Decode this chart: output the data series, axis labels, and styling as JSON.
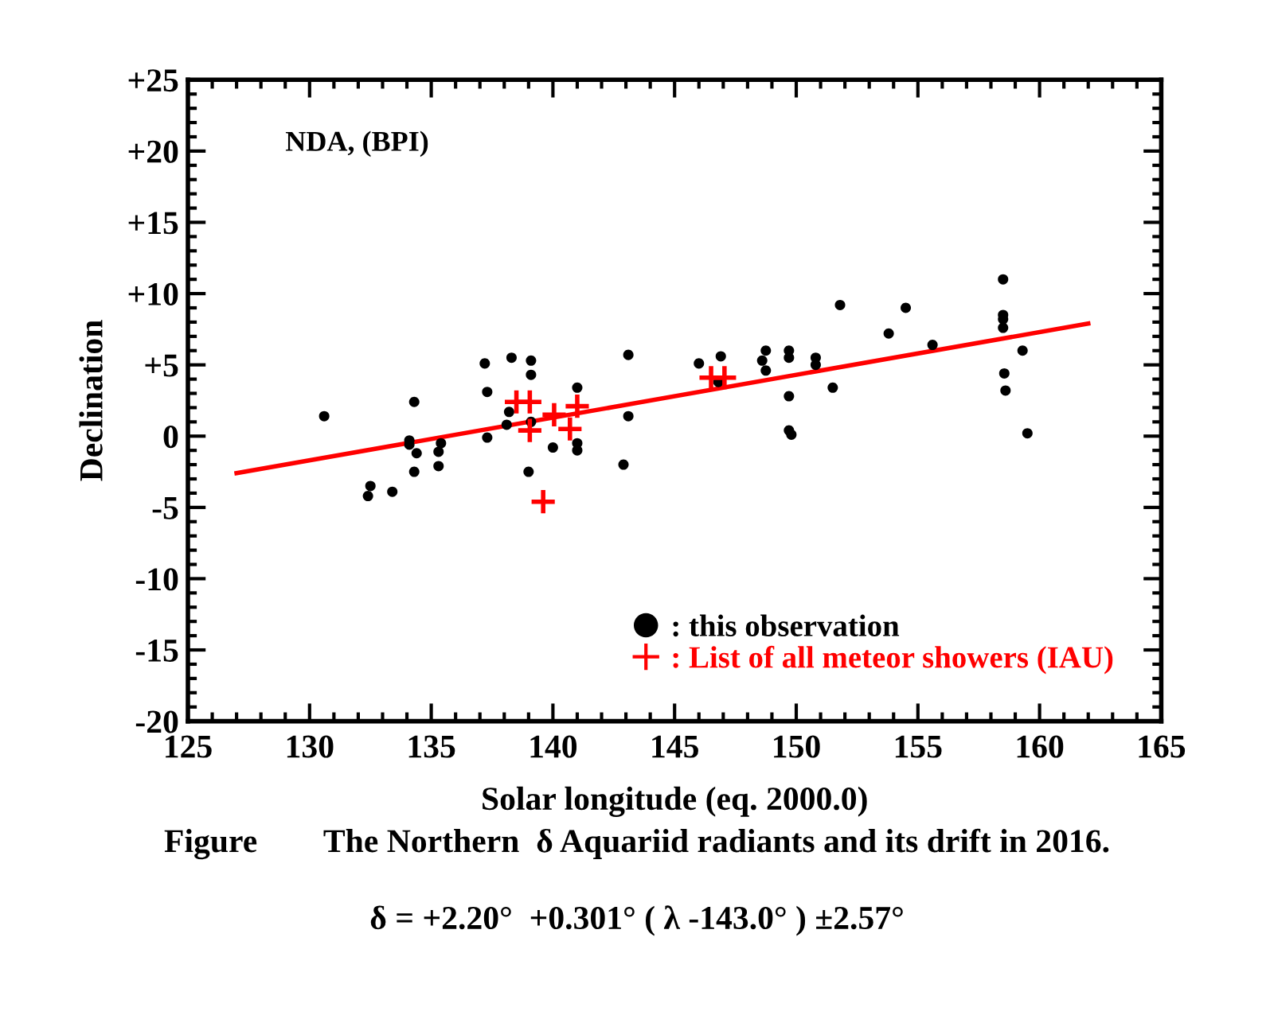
{
  "chart_data": {
    "type": "scatter",
    "xlabel": "Solar longitude (eq. 2000.0)",
    "ylabel": "Declination",
    "xlim": [
      125,
      165
    ],
    "xticks": [
      125,
      130,
      135,
      140,
      145,
      150,
      155,
      160,
      165
    ],
    "ylim": [
      -20,
      25
    ],
    "yticks": [
      -20,
      -15,
      -10,
      -5,
      0,
      {
        "value": 5,
        "label": "+5"
      },
      {
        "value": 10,
        "label": "+10"
      },
      {
        "value": 15,
        "label": "+15"
      },
      {
        "value": 20,
        "label": "+20"
      },
      {
        "value": 25,
        "label": "+25"
      }
    ],
    "grid": false,
    "legend": "lower right",
    "annotations": [
      "NDA, (BPI)",
      "Figure        The Northern  δ Aquariid radiants and its drift in 2016.",
      "δ = +2.20°  +0.301° ( λ -143.0° ) ±2.57°"
    ],
    "series": [
      {
        "name": ": this observation",
        "marker": "circle",
        "color": "#000000",
        "x": [
          130.6,
          134.3,
          134.1,
          134.1,
          134.4,
          134.3,
          132.5,
          132.4,
          133.4,
          135.4,
          135.3,
          135.3,
          137.2,
          137.3,
          137.3,
          138.3,
          138.2,
          138.1,
          139.1,
          139.1,
          139.0,
          139.1,
          140.0,
          141.0,
          141.0,
          141.0,
          143.1,
          143.1,
          142.9,
          146.0,
          146.9,
          146.8,
          148.75,
          148.6,
          148.75,
          149.7,
          149.7,
          149.7,
          149.7,
          149.8,
          150.8,
          150.8,
          151.5,
          151.8,
          153.8,
          154.5,
          155.6,
          158.5,
          158.5,
          158.5,
          158.5,
          158.55,
          158.6,
          159.3,
          159.5
        ],
        "values": [
          1.4,
          2.4,
          -0.3,
          -0.6,
          -1.2,
          -2.5,
          -3.5,
          -4.2,
          -3.9,
          -0.5,
          -1.1,
          -2.1,
          5.1,
          3.1,
          -0.1,
          5.5,
          1.7,
          0.8,
          5.3,
          4.3,
          -2.5,
          1.0,
          -0.8,
          3.4,
          -0.5,
          -1.0,
          5.7,
          1.4,
          -2.0,
          5.1,
          5.6,
          3.8,
          6.0,
          5.3,
          4.6,
          6.0,
          5.5,
          2.8,
          0.4,
          0.1,
          5.5,
          5.0,
          3.4,
          9.2,
          7.2,
          9.0,
          6.4,
          11.0,
          8.5,
          8.2,
          7.6,
          4.4,
          3.2,
          6.0,
          0.2
        ]
      },
      {
        "name": ": List of all meteor showers (IAU)",
        "marker": "cross",
        "color": "#ff0000",
        "x": [
          138.5,
          139.05,
          139.05,
          140.05,
          141.0,
          140.7,
          139.6,
          146.5,
          147.05
        ],
        "values": [
          2.4,
          2.4,
          0.4,
          1.5,
          2.1,
          0.5,
          -4.6,
          4.1,
          4.1
        ]
      },
      {
        "type": "line",
        "color": "#ff0000",
        "line_style": "solid",
        "marker": "none",
        "x": [
          127,
          162
        ],
        "values": [
          -2.6,
          7.9
        ]
      }
    ]
  }
}
